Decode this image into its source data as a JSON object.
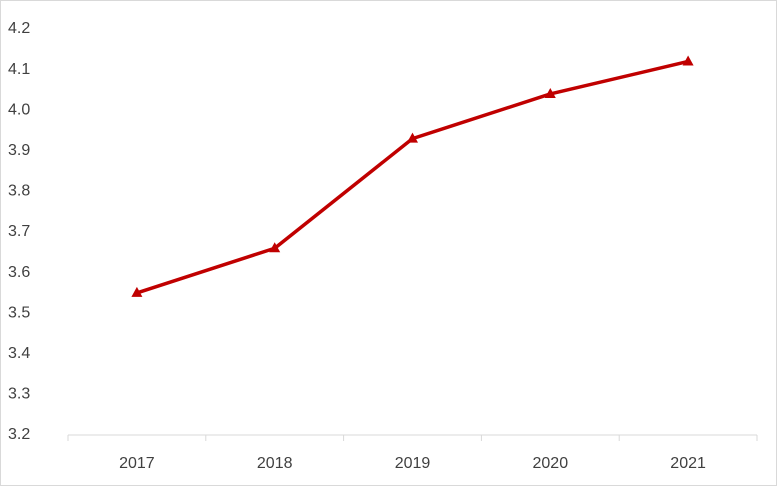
{
  "chart_data": {
    "type": "line",
    "categories": [
      "2017",
      "2018",
      "2019",
      "2020",
      "2021"
    ],
    "series": [
      {
        "color": "#c00000",
        "values": [
          3.55,
          3.66,
          3.93,
          4.04,
          4.12
        ]
      }
    ],
    "ylim": [
      3.2,
      4.2
    ],
    "yticks": [
      3.2,
      3.3,
      3.4,
      3.5,
      3.6,
      3.7,
      3.8,
      3.9,
      {
        "value": 4,
        "label": "4.0"
      },
      4.1,
      4.2
    ],
    "grid": false,
    "marker": "triangle"
  }
}
